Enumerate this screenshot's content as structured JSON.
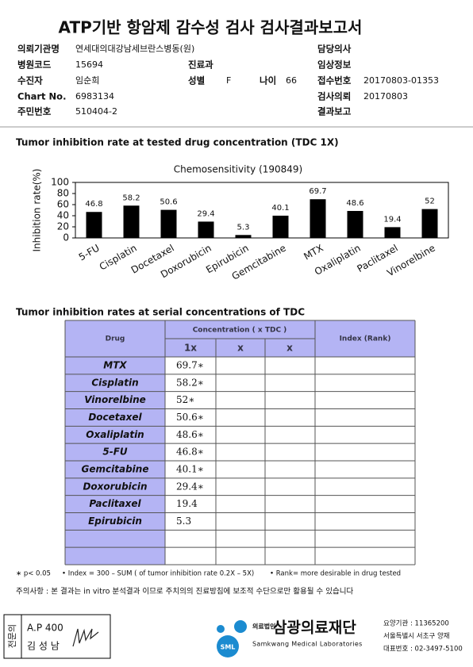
{
  "report": {
    "title": "ATP기반 항암제 감수성 검사 검사결과보고서",
    "fields": [
      {
        "label": "의뢰기관명",
        "value": "연세대의대강남세브란스병동(원)"
      },
      {
        "label": "담당의사"
      },
      {
        "label": "병원코드",
        "value": "15694"
      },
      {
        "label": "진료과"
      },
      {
        "label": "임상정보"
      },
      {
        "label": "수진자",
        "value": "임순희"
      },
      {
        "label": "성별",
        "value": "F"
      },
      {
        "label": "나이",
        "value": "66"
      },
      {
        "label": "접수번호",
        "value": "20170803-01353"
      },
      {
        "label": "Chart No.",
        "value": "6983134"
      },
      {
        "label": "검사의뢰",
        "value": "20170803"
      },
      {
        "label": "주민번호",
        "value": "510404-2"
      },
      {
        "label": "결과보고"
      }
    ],
    "section1": "Tumor inhibition rate at tested drug concentration (TDC 1X)",
    "section2": "Tumor inhibition rates at serial concentrations of TDC"
  },
  "chart_data": {
    "type": "bar",
    "title": "Chemosensitivity (190849)",
    "y_label": "Inhibition rate(%)",
    "categories": [
      "5-FU",
      "Cisplatin",
      "Docetaxel",
      "Doxorubicin",
      "Epirubicin",
      "Gemcitabine",
      "MTX",
      "Oxaliplatin",
      "Paclitaxel",
      "Vinorelbine"
    ],
    "values": [
      46.8,
      58.2,
      50.6,
      29.4,
      5.3,
      40.1,
      69.7,
      48.6,
      19.4,
      52
    ],
    "color": "#000000",
    "ylim": [
      0,
      100
    ],
    "yticks": [
      0,
      20,
      40,
      60,
      80,
      100
    ]
  },
  "table": {
    "header": [
      "Drug",
      "Concentration ( x TDC )",
      "Index (Rank)"
    ],
    "subheader": [
      "1x",
      "x",
      "x"
    ],
    "rows": [
      [
        "MTX",
        "69.7∗"
      ],
      [
        "Cisplatin",
        "58.2∗"
      ],
      [
        "Vinorelbine",
        "52∗"
      ],
      [
        "Docetaxel",
        "50.6∗"
      ],
      [
        "Oxaliplatin",
        "48.6∗"
      ],
      [
        "5-FU",
        "46.8∗"
      ],
      [
        "Gemcitabine",
        "40.1∗"
      ],
      [
        "Doxorubicin",
        "29.4∗"
      ],
      [
        "Paclitaxel",
        "19.4"
      ],
      [
        "Epirubicin",
        "5.3"
      ]
    ]
  },
  "notes": [
    "∗ p< 0.05",
    "• Index = 300 – SUM ( of tumor inhibition rate 0.2X – 5X)",
    "• Rank= more desirable in drug tested"
  ],
  "caution": "주의사항 : 본 결과는 in vitro 분석결과 이므로 주치의의 진료방침에 보조적 수단으로만 활용될 수 있습니다",
  "footer": {
    "specialist": "전문의",
    "ap": "A.P 400",
    "name": "김 성 남",
    "logo": "SML",
    "org_type": "의료법인",
    "org": "삼광의료재단",
    "org_en": "Samkwang Medical Laboratories",
    "code": "요양기관 : 11365200",
    "address": "서울특별시 서초구 양재",
    "phone": "대표번호 : 02-3497-5100"
  }
}
